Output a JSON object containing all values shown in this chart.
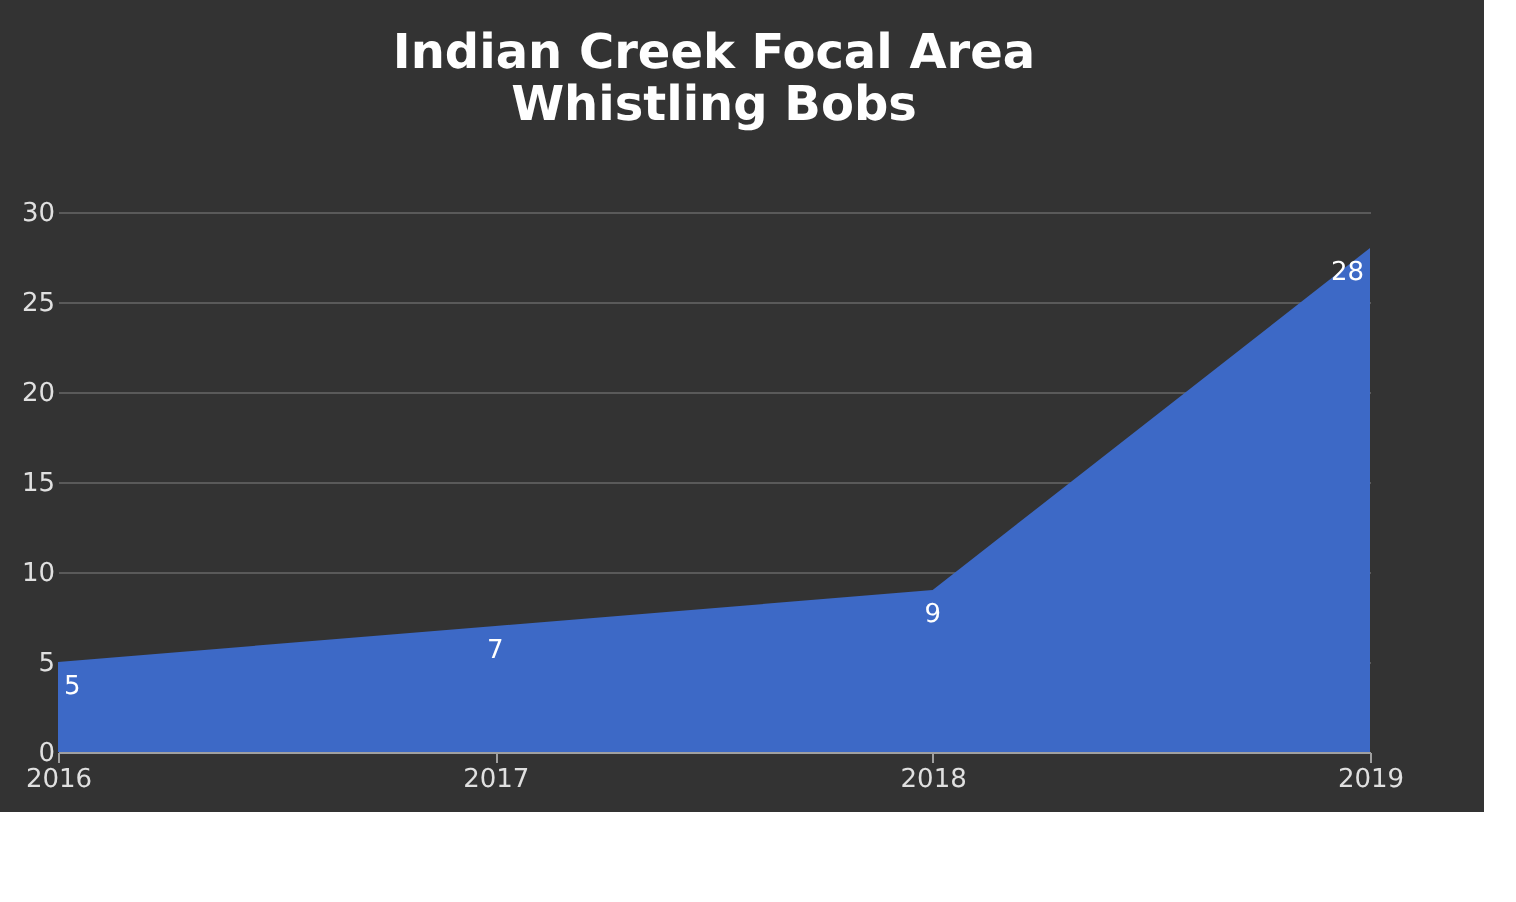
{
  "chart_data": {
    "type": "area",
    "title": "Indian Creek Focal Area\nWhistling Bobs",
    "categories": [
      "2016",
      "2017",
      "2018",
      "2019"
    ],
    "series": [
      {
        "color": "#3d69c6",
        "values": [
          5,
          7,
          9,
          28
        ],
        "value_labels": [
          "5",
          "7",
          "9",
          "28"
        ]
      }
    ],
    "ylim": [
      0,
      30
    ],
    "yticks": [
      0,
      5,
      10,
      15,
      20,
      25,
      30
    ],
    "grid": "y"
  }
}
